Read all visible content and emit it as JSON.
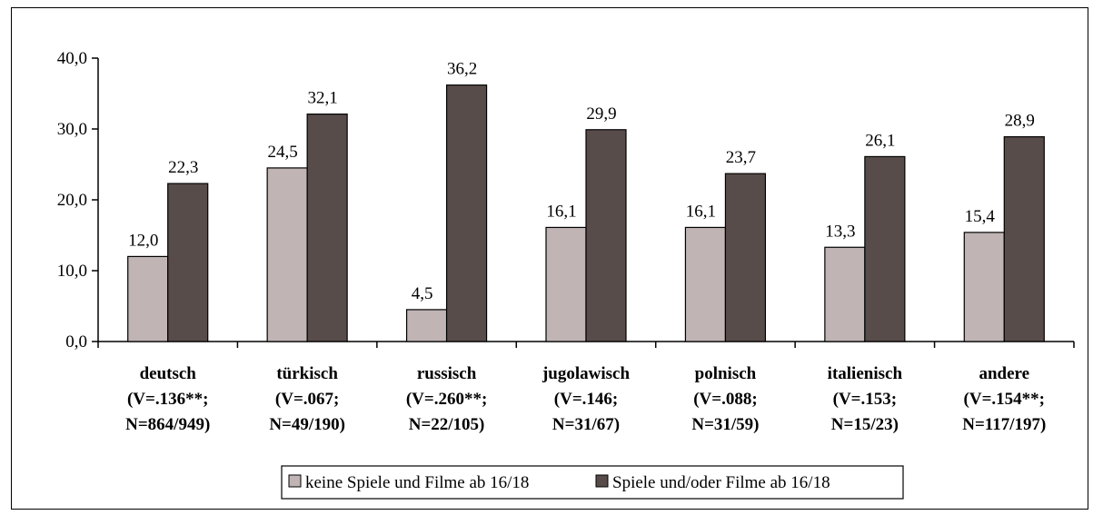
{
  "chart_data": {
    "type": "bar",
    "title": "",
    "xlabel": "",
    "ylabel": "",
    "ylim": [
      0,
      40
    ],
    "y_ticks": [
      "0,0",
      "10,0",
      "20,0",
      "30,0",
      "40,0"
    ],
    "grid": false,
    "legend_position": "bottom",
    "categories": [
      [
        "deutsch",
        "(V=.136**;",
        "N=864/949)"
      ],
      [
        "türkisch",
        "(V=.067;",
        "N=49/190)"
      ],
      [
        "russisch",
        "(V=.260**;",
        "N=22/105)"
      ],
      [
        "jugolawisch",
        "(V=.146;",
        "N=31/67)"
      ],
      [
        "polnisch",
        "(V=.088;",
        "N=31/59)"
      ],
      [
        "italienisch",
        "(V=.153;",
        "N=15/23)"
      ],
      [
        "andere",
        "(V=.154**;",
        "N=117/197)"
      ]
    ],
    "series": [
      {
        "name": "keine Spiele und Filme ab 16/18",
        "color": "#c0b4b4",
        "values": [
          12.0,
          24.5,
          4.5,
          16.1,
          16.1,
          13.3,
          15.4
        ],
        "labels": [
          "12,0",
          "24,5",
          "4,5",
          "16,1",
          "16,1",
          "13,3",
          "15,4"
        ]
      },
      {
        "name": "Spiele und/oder Filme ab 16/18",
        "color": "#584c4a",
        "values": [
          22.3,
          32.1,
          36.2,
          29.9,
          23.7,
          26.1,
          28.9
        ],
        "labels": [
          "22,3",
          "32,1",
          "36,2",
          "29,9",
          "23,7",
          "26,1",
          "28,9"
        ]
      }
    ]
  }
}
